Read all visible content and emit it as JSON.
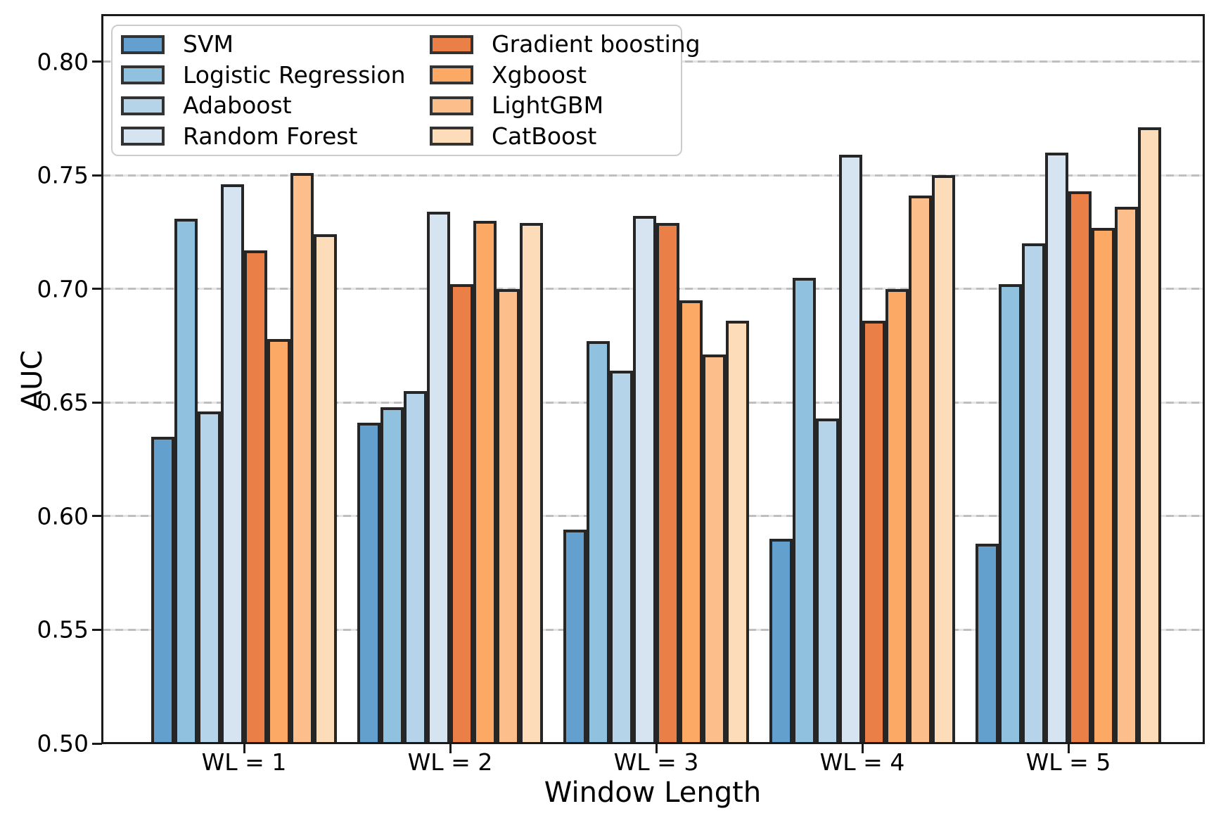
{
  "figure": {
    "ylabel": "AUC",
    "xlabel": "Window Length"
  },
  "chart_data": {
    "type": "bar",
    "title": "",
    "xlabel": "Window Length",
    "ylabel": "AUC",
    "categories": [
      "WL = 1",
      "WL = 2",
      "WL = 3",
      "WL = 4",
      "WL = 5"
    ],
    "series": [
      {
        "name": "SVM",
        "color": "#63A0CD",
        "values": [
          0.635,
          0.641,
          0.594,
          0.59,
          0.588
        ]
      },
      {
        "name": "Logistic Regression",
        "color": "#90C1DF",
        "values": [
          0.731,
          0.648,
          0.677,
          0.705,
          0.702
        ]
      },
      {
        "name": "Adaboost",
        "color": "#B6D4E9",
        "values": [
          0.646,
          0.655,
          0.664,
          0.643,
          0.72
        ]
      },
      {
        "name": "Random Forest",
        "color": "#D6E3F1",
        "values": [
          0.746,
          0.734,
          0.732,
          0.759,
          0.76
        ]
      },
      {
        "name": "Gradient boosting",
        "color": "#EA8048",
        "values": [
          0.717,
          0.702,
          0.729,
          0.686,
          0.743
        ]
      },
      {
        "name": "Xgboost",
        "color": "#FCA966",
        "values": [
          0.678,
          0.73,
          0.695,
          0.7,
          0.727
        ]
      },
      {
        "name": "LightGBM",
        "color": "#FCBF8B",
        "values": [
          0.751,
          0.7,
          0.671,
          0.741,
          0.736
        ]
      },
      {
        "name": "CatBoost",
        "color": "#FDDCB9",
        "values": [
          0.724,
          0.729,
          0.686,
          0.75,
          0.771
        ]
      }
    ],
    "ylim": [
      0.5,
      0.82
    ],
    "yticks": [
      "0.50",
      "0.55",
      "0.60",
      "0.65",
      "0.70",
      "0.75",
      "0.80"
    ],
    "grid": "horizontal dashed",
    "legend_position": "upper left, 2 columns",
    "bar_edge_color": "#262626",
    "grid_color": "#c9c9c9"
  }
}
